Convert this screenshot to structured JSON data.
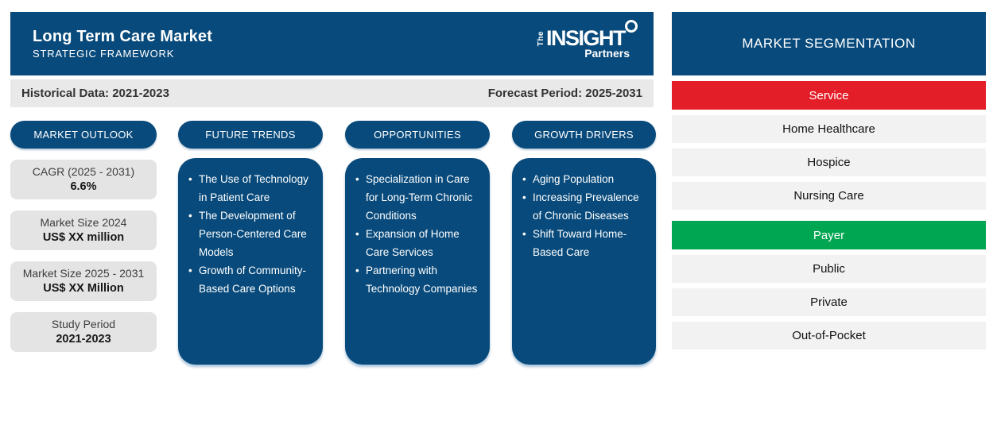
{
  "header": {
    "title": "Long Term Care Market",
    "subtitle": "STRATEGIC FRAMEWORK",
    "logo": {
      "the": "The",
      "insight": "INSIGHT",
      "partners": "Partners"
    }
  },
  "period_bar": {
    "historical": "Historical Data: 2021-2023",
    "forecast": "Forecast Period: 2025-2031"
  },
  "columns": {
    "market_outlook": {
      "label": "MARKET OUTLOOK",
      "cards": [
        {
          "title": "CAGR (2025 - 2031)",
          "value": "6.6%"
        },
        {
          "title": "Market Size 2024",
          "value": "US$ XX million"
        },
        {
          "title": "Market Size 2025 - 2031",
          "value": "US$ XX Million"
        },
        {
          "title": "Study Period",
          "value": "2021-2023"
        }
      ]
    },
    "future_trends": {
      "label": "FUTURE TRENDS",
      "items": [
        "The Use of Technology in Patient Care",
        "The Development of Person-Centered Care Models",
        "Growth of Community-Based Care Options"
      ]
    },
    "opportunities": {
      "label": "OPPORTUNITIES",
      "items": [
        "Specialization in Care for Long-Term Chronic Conditions",
        "Expansion of Home Care Services",
        "Partnering with Technology Companies"
      ]
    },
    "growth_drivers": {
      "label": "GROWTH DRIVERS",
      "items": [
        "Aging Population",
        "Increasing Prevalence of Chronic Diseases",
        "Shift Toward Home-Based Care"
      ]
    }
  },
  "segmentation": {
    "title": "MARKET SEGMENTATION",
    "groups": [
      {
        "label": "Service",
        "color": "#e41e28",
        "items": [
          "Home Healthcare",
          "Hospice",
          "Nursing Care"
        ]
      },
      {
        "label": "Payer",
        "color": "#00a651",
        "items": [
          "Public",
          "Private",
          "Out-of-Pocket"
        ]
      }
    ]
  },
  "colors": {
    "brand_blue": "#084a7b",
    "service_red": "#e41e28",
    "payer_green": "#00a651"
  }
}
